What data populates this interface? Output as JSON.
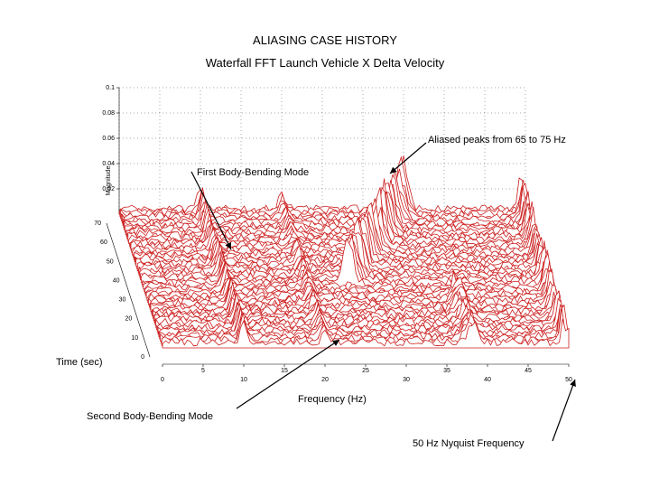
{
  "title": "ALIASING CASE HISTORY",
  "subtitle": "Waterfall FFT   Launch Vehicle   X  Delta Velocity",
  "annotations": {
    "aliased": "Aliased peaks from 65 to 75 Hz",
    "first_mode": "First Body-Bending Mode",
    "second_mode": "Second Body-Bending Mode",
    "nyquist": "50 Hz Nyquist Frequency"
  },
  "chart_data": {
    "type": "waterfall",
    "title": "ALIASING CASE HISTORY",
    "subtitle": "Waterfall FFT   Launch Vehicle   X  Delta Velocity",
    "xlabel": "Frequency (Hz)",
    "ylabel": "Time (sec)",
    "zlabel": "Magnitude",
    "x_ticks": [
      "0",
      "5",
      "10",
      "15",
      "20",
      "25",
      "30",
      "35",
      "40",
      "45",
      "50"
    ],
    "x_tick_values": [
      0,
      5,
      10,
      15,
      20,
      25,
      30,
      35,
      40,
      45,
      50
    ],
    "y_ticks": [
      "0",
      "10",
      "20",
      "30",
      "40",
      "50",
      "60",
      "70"
    ],
    "y_tick_values": [
      0,
      10,
      20,
      30,
      40,
      50,
      60,
      70
    ],
    "z_ticks": [
      "0.02",
      "0.04",
      "0.06",
      "0.08",
      "0.1"
    ],
    "z_tick_values": [
      0.02,
      0.04,
      0.06,
      0.08,
      0.1
    ],
    "xlim": [
      0,
      50
    ],
    "ylim": [
      0,
      70
    ],
    "zlim": [
      0,
      0.1
    ],
    "series_color": "#cc1f1f",
    "peaks": [
      {
        "name": "First Body-Bending Mode",
        "frequency": 10
      },
      {
        "name": "Second Body-Bending Mode",
        "frequency": 20
      },
      {
        "name": "Aliased peaks from 65 to 75 Hz",
        "frequency_range": [
          25,
          35
        ]
      },
      {
        "name": "50 Hz Nyquist Frequency",
        "frequency": 50
      }
    ]
  }
}
